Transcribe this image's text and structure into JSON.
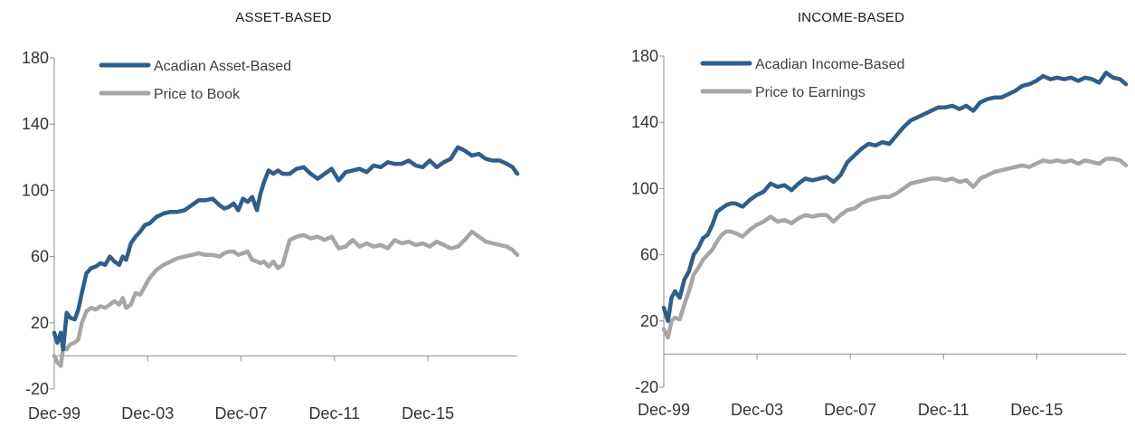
{
  "chart_data": [
    {
      "type": "line",
      "title": "ASSET-BASED",
      "xlabel": "",
      "ylabel": "",
      "ylim": [
        -20,
        180
      ],
      "yticks": [
        -20,
        20,
        60,
        100,
        140,
        180
      ],
      "xlim": [
        1999.92,
        2019.75
      ],
      "xticks": [
        "Dec-99",
        "Dec-03",
        "Dec-07",
        "Dec-11",
        "Dec-15"
      ],
      "grid": false,
      "legend_position": "top-left",
      "series": [
        {
          "name": "Acadian Asset-Based",
          "color": "#2e5e8b",
          "x": [
            1999.92,
            2000.05,
            2000.2,
            2000.3,
            2000.45,
            2000.6,
            2000.8,
            2000.95,
            2001.1,
            2001.3,
            2001.5,
            2001.7,
            2001.9,
            2002.1,
            2002.3,
            2002.5,
            2002.7,
            2002.85,
            2003.0,
            2003.2,
            2003.4,
            2003.6,
            2003.8,
            2004.0,
            2004.3,
            2004.6,
            2004.9,
            2005.2,
            2005.5,
            2005.8,
            2006.1,
            2006.4,
            2006.7,
            2007.0,
            2007.2,
            2007.4,
            2007.6,
            2007.8,
            2008.0,
            2008.2,
            2008.4,
            2008.6,
            2008.75,
            2008.9,
            2009.1,
            2009.3,
            2009.5,
            2009.7,
            2010.0,
            2010.3,
            2010.6,
            2010.9,
            2011.2,
            2011.5,
            2011.8,
            2012.1,
            2012.4,
            2012.7,
            2013.0,
            2013.3,
            2013.6,
            2013.9,
            2014.2,
            2014.5,
            2014.8,
            2015.1,
            2015.4,
            2015.7,
            2016.0,
            2016.3,
            2016.6,
            2016.9,
            2017.2,
            2017.5,
            2017.8,
            2018.1,
            2018.4,
            2018.7,
            2019.0,
            2019.3,
            2019.55,
            2019.75
          ],
          "values": [
            14,
            8,
            14,
            4,
            26,
            23,
            22,
            28,
            38,
            50,
            53,
            54,
            56,
            55,
            60,
            57,
            55,
            60,
            58,
            68,
            72,
            75,
            79,
            80,
            84,
            86,
            87,
            87,
            88,
            91,
            94,
            94,
            95,
            91,
            89,
            90,
            92,
            88,
            95,
            93,
            96,
            88,
            98,
            105,
            112,
            110,
            112,
            110,
            110,
            113,
            114,
            110,
            107,
            110,
            113,
            106,
            111,
            112,
            113,
            111,
            115,
            114,
            117,
            116,
            116,
            118,
            115,
            114,
            118,
            114,
            117,
            119,
            126,
            124,
            121,
            122,
            119,
            118,
            118,
            116,
            114,
            110
          ]
        },
        {
          "name": "Price to Book",
          "color": "#a6a6a6",
          "x": [
            1999.92,
            2000.05,
            2000.2,
            2000.3,
            2000.45,
            2000.6,
            2000.8,
            2000.95,
            2001.1,
            2001.3,
            2001.5,
            2001.7,
            2001.9,
            2002.1,
            2002.3,
            2002.5,
            2002.7,
            2002.85,
            2003.0,
            2003.2,
            2003.4,
            2003.6,
            2003.8,
            2004.0,
            2004.3,
            2004.6,
            2004.9,
            2005.2,
            2005.5,
            2005.8,
            2006.1,
            2006.4,
            2006.7,
            2007.0,
            2007.2,
            2007.4,
            2007.6,
            2007.8,
            2008.0,
            2008.2,
            2008.4,
            2008.6,
            2008.75,
            2008.9,
            2009.1,
            2009.3,
            2009.5,
            2009.7,
            2010.0,
            2010.3,
            2010.6,
            2010.9,
            2011.2,
            2011.5,
            2011.8,
            2012.1,
            2012.4,
            2012.7,
            2013.0,
            2013.3,
            2013.6,
            2013.9,
            2014.2,
            2014.5,
            2014.8,
            2015.1,
            2015.4,
            2015.7,
            2016.0,
            2016.3,
            2016.6,
            2016.9,
            2017.2,
            2017.5,
            2017.8,
            2018.1,
            2018.4,
            2018.7,
            2019.0,
            2019.3,
            2019.55,
            2019.75
          ],
          "values": [
            0,
            -4,
            -6,
            5,
            4,
            7,
            8,
            10,
            20,
            27,
            29,
            28,
            30,
            29,
            31,
            33,
            31,
            35,
            29,
            31,
            38,
            37,
            42,
            47,
            52,
            55,
            57,
            59,
            60,
            61,
            62,
            61,
            61,
            60,
            62,
            63,
            63,
            61,
            62,
            63,
            58,
            57,
            56,
            57,
            54,
            57,
            53,
            55,
            70,
            72,
            73,
            71,
            72,
            70,
            72,
            65,
            66,
            70,
            66,
            68,
            66,
            67,
            65,
            70,
            68,
            69,
            67,
            68,
            66,
            69,
            67,
            65,
            66,
            70,
            75,
            72,
            69,
            68,
            67,
            66,
            64,
            61
          ]
        }
      ]
    },
    {
      "type": "line",
      "title": "INCOME-BASED",
      "xlabel": "",
      "ylabel": "",
      "ylim": [
        -20,
        180
      ],
      "yticks": [
        -20,
        20,
        60,
        100,
        140,
        180
      ],
      "xlim": [
        1999.92,
        2019.75
      ],
      "xticks": [
        "Dec-99",
        "Dec-03",
        "Dec-07",
        "Dec-11",
        "Dec-15"
      ],
      "grid": false,
      "legend_position": "top-left",
      "series": [
        {
          "name": "Acadian Income-Based",
          "color": "#2e5e8b",
          "x": [
            1999.92,
            2000.1,
            2000.25,
            2000.4,
            2000.6,
            2000.8,
            2001.0,
            2001.2,
            2001.4,
            2001.6,
            2001.8,
            2002.0,
            2002.2,
            2002.4,
            2002.6,
            2002.8,
            2003.0,
            2003.3,
            2003.6,
            2003.9,
            2004.2,
            2004.5,
            2004.8,
            2005.1,
            2005.4,
            2005.7,
            2006.0,
            2006.3,
            2006.6,
            2006.9,
            2007.2,
            2007.5,
            2007.8,
            2008.1,
            2008.4,
            2008.7,
            2009.0,
            2009.3,
            2009.6,
            2009.9,
            2010.2,
            2010.5,
            2010.8,
            2011.1,
            2011.4,
            2011.7,
            2012.0,
            2012.3,
            2012.6,
            2012.9,
            2013.2,
            2013.5,
            2013.8,
            2014.1,
            2014.4,
            2014.7,
            2015.0,
            2015.3,
            2015.6,
            2015.9,
            2016.2,
            2016.5,
            2016.8,
            2017.1,
            2017.4,
            2017.7,
            2018.0,
            2018.3,
            2018.6,
            2018.9,
            2019.2,
            2019.5,
            2019.75
          ],
          "values": [
            28,
            20,
            34,
            38,
            34,
            45,
            50,
            60,
            64,
            70,
            72,
            78,
            86,
            88,
            90,
            91,
            91,
            89,
            93,
            96,
            98,
            103,
            101,
            102,
            99,
            103,
            106,
            105,
            106,
            107,
            104,
            108,
            116,
            120,
            124,
            127,
            126,
            128,
            127,
            132,
            137,
            141,
            143,
            145,
            147,
            149,
            149,
            150,
            148,
            150,
            147,
            152,
            154,
            155,
            155,
            157,
            159,
            162,
            163,
            165,
            168,
            166,
            167,
            166,
            167,
            165,
            167,
            166,
            164,
            170,
            167,
            166,
            163
          ]
        },
        {
          "name": "Price to Earnings",
          "color": "#a6a6a6",
          "x": [
            1999.92,
            2000.1,
            2000.25,
            2000.4,
            2000.6,
            2000.8,
            2001.0,
            2001.2,
            2001.4,
            2001.6,
            2001.8,
            2002.0,
            2002.2,
            2002.4,
            2002.6,
            2002.8,
            2003.0,
            2003.3,
            2003.6,
            2003.9,
            2004.2,
            2004.5,
            2004.8,
            2005.1,
            2005.4,
            2005.7,
            2006.0,
            2006.3,
            2006.6,
            2006.9,
            2007.2,
            2007.5,
            2007.8,
            2008.1,
            2008.4,
            2008.7,
            2009.0,
            2009.3,
            2009.6,
            2009.9,
            2010.2,
            2010.5,
            2010.8,
            2011.1,
            2011.4,
            2011.7,
            2012.0,
            2012.3,
            2012.6,
            2012.9,
            2013.2,
            2013.5,
            2013.8,
            2014.1,
            2014.4,
            2014.7,
            2015.0,
            2015.3,
            2015.6,
            2015.9,
            2016.2,
            2016.5,
            2016.8,
            2017.1,
            2017.4,
            2017.7,
            2018.0,
            2018.3,
            2018.6,
            2018.9,
            2019.2,
            2019.5,
            2019.75
          ],
          "values": [
            15,
            10,
            20,
            22,
            21,
            30,
            38,
            48,
            52,
            57,
            60,
            63,
            68,
            72,
            74,
            74,
            73,
            71,
            75,
            78,
            80,
            83,
            80,
            81,
            79,
            82,
            84,
            83,
            84,
            84,
            80,
            84,
            87,
            88,
            91,
            93,
            94,
            95,
            95,
            97,
            100,
            103,
            104,
            105,
            106,
            106,
            105,
            106,
            104,
            105,
            101,
            106,
            108,
            110,
            111,
            112,
            113,
            114,
            113,
            115,
            117,
            116,
            117,
            116,
            117,
            115,
            117,
            116,
            115,
            118,
            118,
            117,
            114
          ]
        }
      ]
    }
  ]
}
